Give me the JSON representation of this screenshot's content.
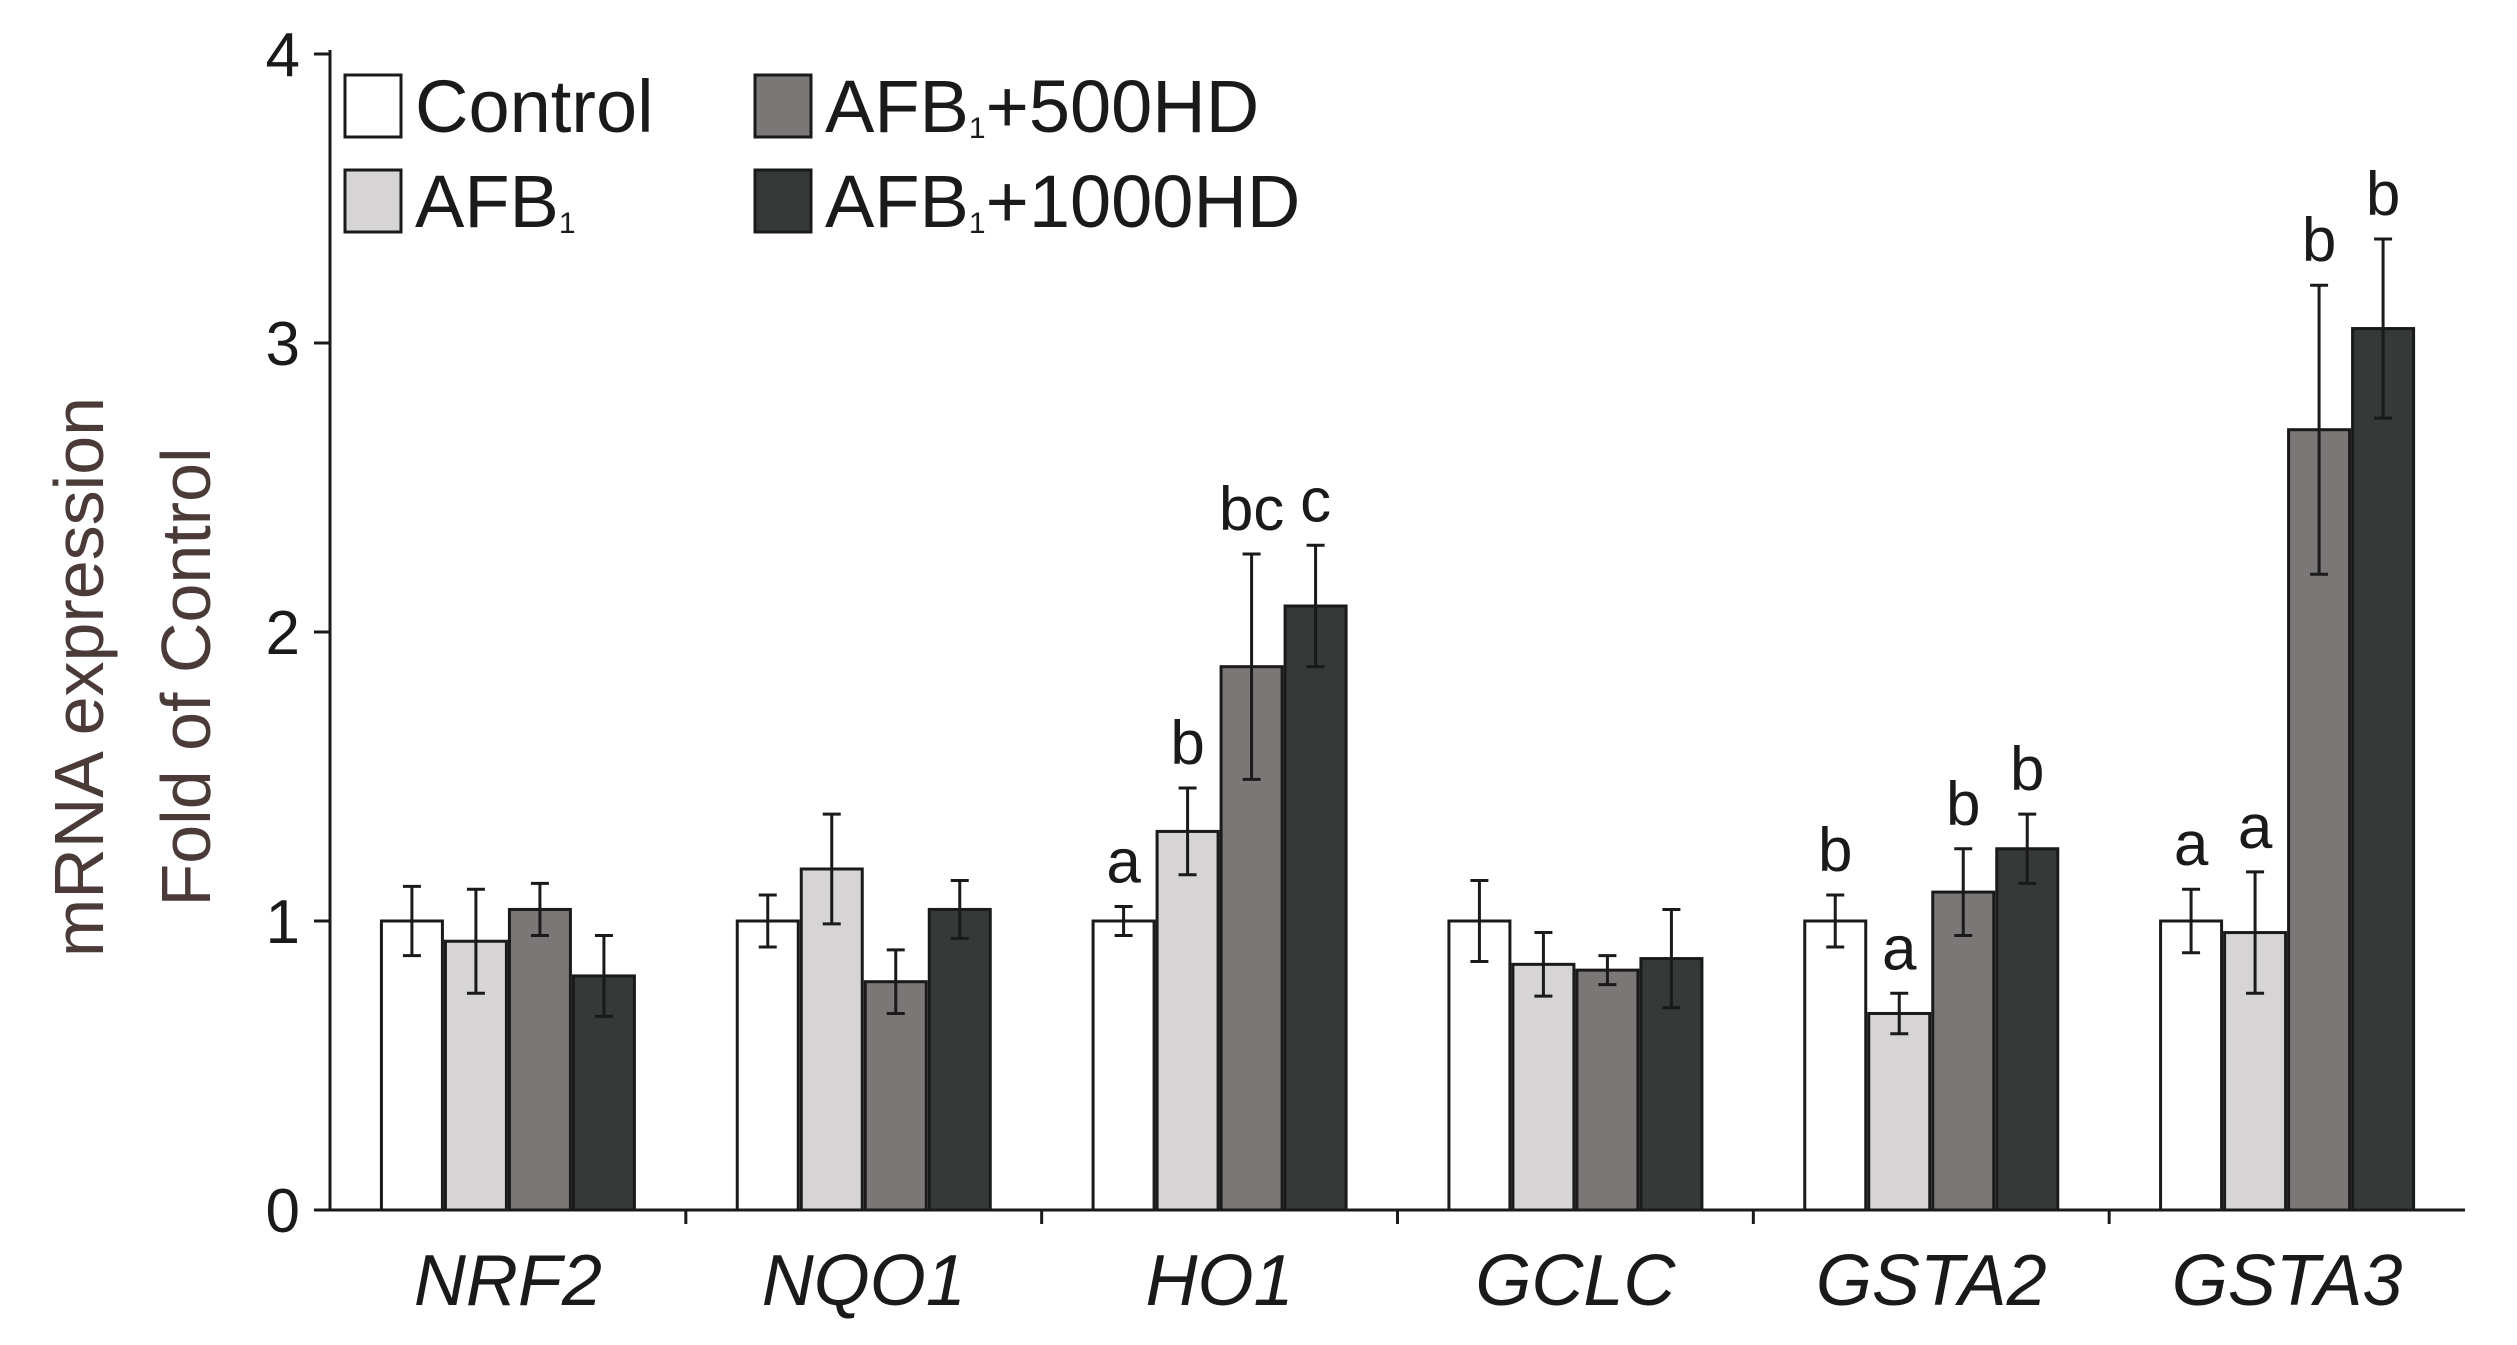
{
  "chart_data": {
    "type": "bar",
    "title": "",
    "xlabel": "",
    "ylabel_line1": "mRNA expression",
    "ylabel_line2": "Fold of Control",
    "ylim": [
      0,
      4
    ],
    "yticks": [
      "0",
      "1",
      "2",
      "3",
      "4"
    ],
    "categories": [
      "NRF2",
      "NQO1",
      "HO1",
      "GCLC",
      "GSTA2",
      "GSTA3"
    ],
    "series": [
      {
        "name": "Control",
        "legend_base": "Control",
        "legend_sub": "",
        "legend_rest": "",
        "color": "#ffffff",
        "values": [
          1.0,
          1.0,
          1.0,
          1.0,
          1.0,
          1.0
        ],
        "errors": [
          0.12,
          0.09,
          0.05,
          0.14,
          0.09,
          0.11
        ],
        "labels": [
          "",
          "",
          "a",
          "",
          "b",
          "a"
        ]
      },
      {
        "name": "AFB1",
        "legend_base": "AFB",
        "legend_sub": "1",
        "legend_rest": "",
        "color": "#d6d4d5",
        "values": [
          0.93,
          1.18,
          1.31,
          0.85,
          0.68,
          0.96
        ],
        "errors": [
          0.18,
          0.19,
          0.15,
          0.11,
          0.07,
          0.21
        ],
        "labels": [
          "",
          "",
          "b",
          "",
          "a",
          "a"
        ]
      },
      {
        "name": "AFB1+500HD",
        "legend_base": "AFB",
        "legend_sub": "1",
        "legend_rest": "+500HD",
        "color": "#7b7776",
        "values": [
          1.04,
          0.79,
          1.88,
          0.83,
          1.1,
          2.7
        ],
        "errors": [
          0.09,
          0.11,
          0.39,
          0.05,
          0.15,
          0.5
        ],
        "labels": [
          "",
          "",
          "bc",
          "",
          "b",
          "b"
        ]
      },
      {
        "name": "AFB1+1000HD",
        "legend_base": "AFB",
        "legend_sub": "1",
        "legend_rest": "+1000HD",
        "color": "#353938",
        "values": [
          0.81,
          1.04,
          2.09,
          0.87,
          1.25,
          3.05
        ],
        "errors": [
          0.14,
          0.1,
          0.21,
          0.17,
          0.12,
          0.31
        ],
        "labels": [
          "",
          "",
          "c",
          "",
          "b",
          "b"
        ]
      }
    ],
    "legend": {
      "position": "top-left"
    }
  }
}
